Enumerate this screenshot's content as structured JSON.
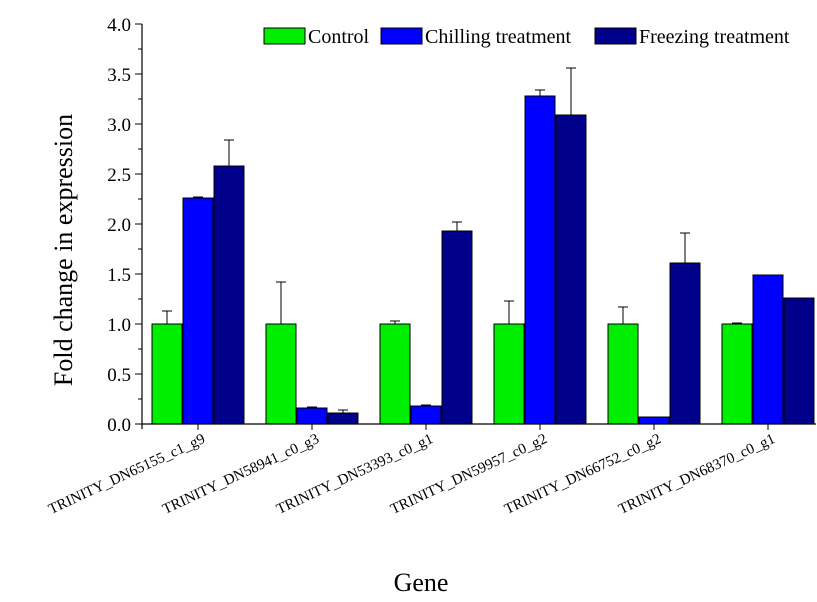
{
  "chart_data": {
    "type": "bar",
    "xlabel": "Gene",
    "ylabel": "Fold change in expression",
    "ylim": [
      0,
      4
    ],
    "yticks": [
      "0.0",
      "0.5",
      "1.0",
      "1.5",
      "2.0",
      "2.5",
      "3.0",
      "3.5",
      "4.0"
    ],
    "categories": [
      "TRINITY_DN65155_c1_g9",
      "TRINITY_DN58941_c0_g3",
      "TRINITY_DN53393_c0_g1",
      "TRINITY_DN59957_c0_g2",
      "TRINITY_DN66752_c0_g2",
      "TRINITY_DN68370_c0_g1"
    ],
    "series": [
      {
        "name": "Control",
        "color": "#00ee00",
        "values": [
          1.0,
          1.0,
          1.0,
          1.0,
          1.0,
          1.0
        ],
        "errors": [
          0.13,
          0.42,
          0.03,
          0.23,
          0.17,
          0.01
        ]
      },
      {
        "name": "Chilling treatment",
        "color": "#0000ff",
        "values": [
          2.26,
          0.16,
          0.18,
          3.28,
          0.07,
          1.49
        ],
        "errors": [
          0.01,
          0.01,
          0.01,
          0.06,
          0.0,
          0.0
        ]
      },
      {
        "name": "Freezing treatment",
        "color": "#00008b",
        "values": [
          2.58,
          0.11,
          1.93,
          3.09,
          1.61,
          1.26
        ],
        "errors": [
          0.26,
          0.03,
          0.09,
          0.47,
          0.3,
          0.0
        ]
      }
    ],
    "legend_position": "top-right",
    "grid": false
  }
}
